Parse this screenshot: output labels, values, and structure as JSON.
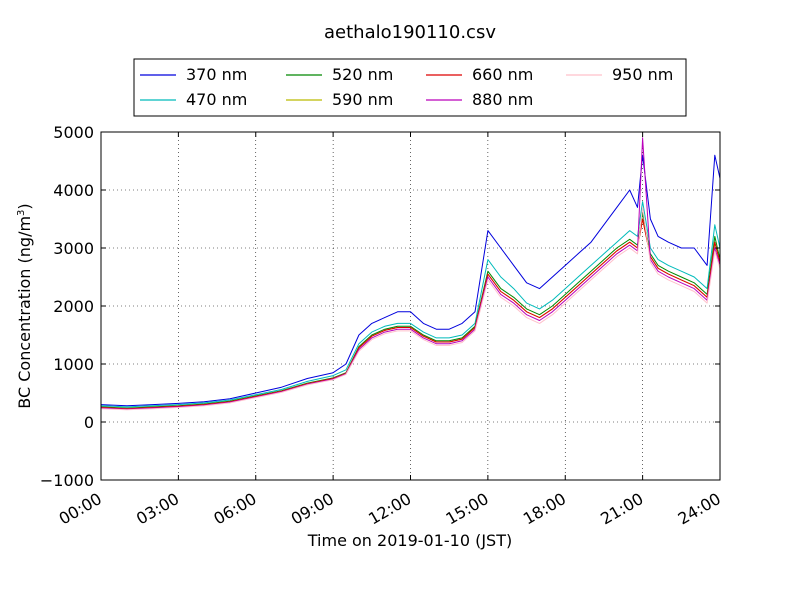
{
  "chart_data": {
    "type": "line",
    "title": "aethalo190110.csv",
    "xlabel": "Time on 2019-01-10 (JST)",
    "ylabel_main": "BC Concentration (ng/m",
    "ylabel_sup": "3",
    "ylabel_end": ")",
    "xlim": [
      0,
      24
    ],
    "ylim": [
      -1000,
      5000
    ],
    "xticks": [
      {
        "value": 0,
        "label": "00:00"
      },
      {
        "value": 3,
        "label": "03:00"
      },
      {
        "value": 6,
        "label": "06:00"
      },
      {
        "value": 9,
        "label": "09:00"
      },
      {
        "value": 12,
        "label": "12:00"
      },
      {
        "value": 15,
        "label": "15:00"
      },
      {
        "value": 18,
        "label": "18:00"
      },
      {
        "value": 21,
        "label": "21:00"
      },
      {
        "value": 24,
        "label": "24:00"
      }
    ],
    "yticks": [
      {
        "value": -1000,
        "label": "−1000"
      },
      {
        "value": 0,
        "label": "0"
      },
      {
        "value": 1000,
        "label": "1000"
      },
      {
        "value": 2000,
        "label": "2000"
      },
      {
        "value": 3000,
        "label": "3000"
      },
      {
        "value": 4000,
        "label": "4000"
      },
      {
        "value": 5000,
        "label": "5000"
      }
    ],
    "grid": true,
    "legend_position": "top, above plot",
    "x": [
      0,
      1,
      2,
      3,
      4,
      5,
      6,
      7,
      8,
      9,
      9.5,
      10,
      10.5,
      11,
      11.5,
      12,
      12.5,
      13,
      13.5,
      14,
      14.5,
      15,
      15.5,
      16,
      16.5,
      17,
      17.5,
      18,
      18.5,
      19,
      19.5,
      20,
      20.5,
      20.8,
      21,
      21.3,
      21.6,
      22,
      22.5,
      23,
      23.5,
      23.8,
      24
    ],
    "series": [
      {
        "name": "370 nm",
        "color": "#0000dd",
        "values": [
          300,
          280,
          300,
          320,
          350,
          400,
          500,
          600,
          750,
          850,
          1000,
          1500,
          1700,
          1800,
          1900,
          1900,
          1700,
          1600,
          1600,
          1700,
          1900,
          3300,
          3000,
          2700,
          2400,
          2300,
          2500,
          2700,
          2900,
          3100,
          3400,
          3700,
          4000,
          3700,
          4600,
          3500,
          3200,
          3100,
          3000,
          3000,
          2700,
          4600,
          4200
        ]
      },
      {
        "name": "470 nm",
        "color": "#00bbbb",
        "values": [
          280,
          260,
          280,
          300,
          330,
          380,
          470,
          560,
          700,
          800,
          900,
          1350,
          1550,
          1650,
          1700,
          1700,
          1550,
          1450,
          1450,
          1500,
          1700,
          2800,
          2500,
          2300,
          2050,
          1950,
          2100,
          2300,
          2500,
          2700,
          2900,
          3100,
          3300,
          3200,
          3800,
          3000,
          2800,
          2700,
          2600,
          2500,
          2300,
          3400,
          3000
        ]
      },
      {
        "name": "520 nm",
        "color": "#008800",
        "values": [
          260,
          240,
          260,
          280,
          310,
          360,
          450,
          540,
          670,
          760,
          850,
          1300,
          1500,
          1600,
          1650,
          1650,
          1500,
          1400,
          1400,
          1450,
          1650,
          2600,
          2300,
          2150,
          1950,
          1850,
          2000,
          2200,
          2400,
          2600,
          2800,
          3000,
          3150,
          3050,
          3600,
          2900,
          2700,
          2600,
          2500,
          2400,
          2200,
          3200,
          2800
        ]
      },
      {
        "name": "590 nm",
        "color": "#bbbb00",
        "values": [
          250,
          230,
          250,
          270,
          300,
          350,
          440,
          530,
          660,
          750,
          840,
          1280,
          1480,
          1580,
          1630,
          1630,
          1480,
          1380,
          1380,
          1430,
          1630,
          2550,
          2250,
          2100,
          1900,
          1800,
          1950,
          2150,
          2350,
          2550,
          2750,
          2950,
          3100,
          3000,
          3500,
          2850,
          2650,
          2550,
          2450,
          2350,
          2150,
          3100,
          2750
        ]
      },
      {
        "name": "660 nm",
        "color": "#dd0000",
        "values": [
          250,
          230,
          250,
          270,
          300,
          350,
          440,
          530,
          660,
          750,
          840,
          1280,
          1480,
          1580,
          1630,
          1630,
          1480,
          1380,
          1380,
          1430,
          1630,
          2550,
          2250,
          2100,
          1900,
          1800,
          1950,
          2150,
          2350,
          2550,
          2750,
          2950,
          3100,
          3000,
          3500,
          2850,
          2650,
          2550,
          2450,
          2350,
          2150,
          3100,
          2750
        ]
      },
      {
        "name": "880 nm",
        "color": "#bb00bb",
        "values": [
          240,
          220,
          240,
          260,
          290,
          340,
          430,
          520,
          650,
          740,
          830,
          1250,
          1450,
          1550,
          1600,
          1600,
          1450,
          1350,
          1350,
          1400,
          1600,
          2500,
          2200,
          2050,
          1850,
          1750,
          1900,
          2100,
          2300,
          2500,
          2700,
          2900,
          3050,
          2950,
          4900,
          2800,
          2600,
          2500,
          2400,
          2300,
          2100,
          3000,
          2700
        ]
      },
      {
        "name": "950 nm",
        "color": "#ffc0cb",
        "values": [
          230,
          210,
          230,
          250,
          280,
          330,
          420,
          510,
          640,
          730,
          820,
          1220,
          1420,
          1520,
          1570,
          1570,
          1420,
          1320,
          1320,
          1370,
          1570,
          2450,
          2150,
          2000,
          1800,
          1700,
          1850,
          2050,
          2250,
          2450,
          2650,
          2850,
          3000,
          2900,
          3700,
          2750,
          2550,
          2450,
          2350,
          2250,
          2050,
          2950,
          2650
        ]
      }
    ]
  }
}
